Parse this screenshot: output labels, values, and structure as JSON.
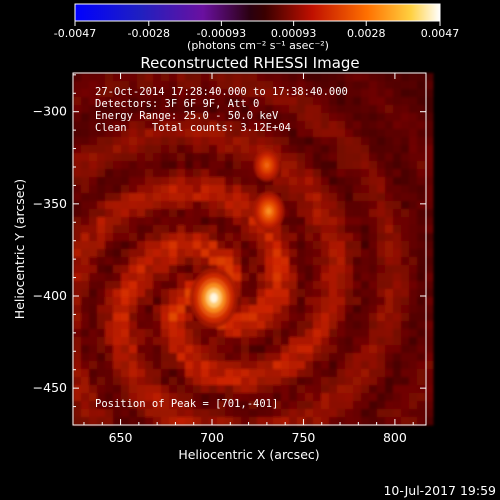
{
  "colorbar": {
    "min": -0.0047,
    "max": 0.0047,
    "tick_labels": [
      "-0.0047",
      "-0.0028",
      "-0.00093",
      "0.00093",
      "0.0028",
      "0.0047"
    ],
    "tick_values": [
      -0.0047,
      -0.0028,
      -0.00093,
      0.00093,
      0.0028,
      0.0047
    ],
    "unit_label": "(photons cm⁻² s⁻¹ asec⁻²)",
    "colormap": "black-blue-purple-red-orange-yellow-white"
  },
  "chart_data": {
    "type": "heatmap",
    "title": "Reconstructed RHESSI Image",
    "xlabel": "Heliocentric X (arcsec)",
    "ylabel": "Heliocentric Y (arcsec)",
    "xlim": [
      624,
      817
    ],
    "ylim": [
      -470,
      -279
    ],
    "x_tick_values": [
      650,
      700,
      750,
      800
    ],
    "x_tick_labels": [
      "650",
      "700",
      "750",
      "800"
    ],
    "y_tick_values": [
      -300,
      -350,
      -400,
      -450
    ],
    "y_tick_labels": [
      "−300",
      "−350",
      "−400",
      "−450"
    ],
    "sources": [
      {
        "x": 701,
        "y": -401,
        "relative_intensity": 1.0
      },
      {
        "x": 731,
        "y": -354,
        "relative_intensity": 0.55
      },
      {
        "x": 730,
        "y": -329,
        "relative_intensity": 0.4
      }
    ],
    "annotations": [
      "27-Oct-2014 17:28:40.000 to 17:38:40.000",
      "Detectors: 3F 6F 9F, Att 0",
      "Energy Range: 25.0 - 50.0 keV",
      "Clean    Total counts: 3.12E+04",
      "Position of Peak = [701,-401]"
    ],
    "peak": [
      701,
      -401
    ]
  },
  "footer": {
    "timestamp": "10-Jul-2017 19:59"
  }
}
